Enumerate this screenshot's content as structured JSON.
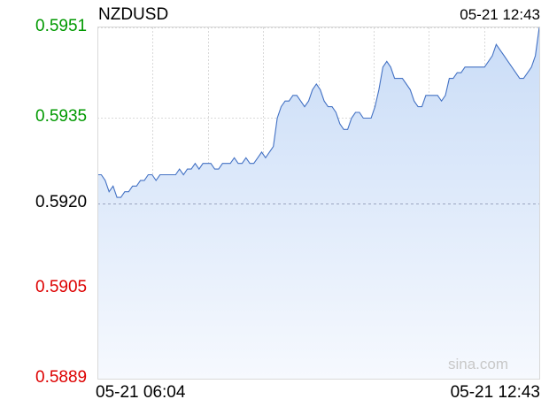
{
  "header": {
    "symbol": "NZDUSD",
    "timestamp": "05-21 12:43"
  },
  "watermark": "sina.com",
  "colors": {
    "up": "#009900",
    "down": "#dd0000",
    "neutral": "#000000",
    "line": "#4472c4",
    "fill_top": "#c9dcf7",
    "fill_bottom": "#f6f9fe",
    "grid": "#d9d9d9",
    "baseline": "#9aa5c0"
  },
  "chart_data": {
    "type": "area",
    "title": "NZDUSD",
    "xlabel": "",
    "ylabel": "",
    "x_range": [
      "05-21 06:04",
      "05-21 12:43"
    ],
    "x_tick_labels": [
      "05-21 06:04",
      "05-21 12:43"
    ],
    "ylim": [
      0.5889,
      0.5951
    ],
    "y_ticks": [
      {
        "label": "0.5951",
        "value": 0.5951,
        "tone": "up"
      },
      {
        "label": "0.5935",
        "value": 0.5935,
        "tone": "up"
      },
      {
        "label": "0.5920",
        "value": 0.592,
        "tone": "neutral"
      },
      {
        "label": "0.5905",
        "value": 0.5905,
        "tone": "down"
      },
      {
        "label": "0.5889",
        "value": 0.5889,
        "tone": "down"
      }
    ],
    "reference_value": 0.592,
    "grid": true,
    "series": [
      {
        "values": [
          0.5925,
          0.5925,
          0.5924,
          0.5922,
          0.5923,
          0.5921,
          0.5921,
          0.5922,
          0.5922,
          0.5923,
          0.5923,
          0.5924,
          0.5924,
          0.5925,
          0.5925,
          0.5924,
          0.5925,
          0.5925,
          0.5925,
          0.5925,
          0.5925,
          0.5926,
          0.5925,
          0.5926,
          0.5926,
          0.5927,
          0.5926,
          0.5927,
          0.5927,
          0.5927,
          0.5926,
          0.5926,
          0.5927,
          0.5927,
          0.5927,
          0.5928,
          0.5927,
          0.5927,
          0.5928,
          0.5927,
          0.5927,
          0.5928,
          0.5929,
          0.5928,
          0.5929,
          0.593,
          0.5935,
          0.5937,
          0.5938,
          0.5938,
          0.5939,
          0.5939,
          0.5938,
          0.5937,
          0.5938,
          0.594,
          0.5941,
          0.594,
          0.5938,
          0.5937,
          0.5937,
          0.5936,
          0.5934,
          0.5933,
          0.5933,
          0.5935,
          0.5936,
          0.5936,
          0.5935,
          0.5935,
          0.5935,
          0.5937,
          0.594,
          0.5944,
          0.5945,
          0.5944,
          0.5942,
          0.5942,
          0.5942,
          0.5941,
          0.594,
          0.5938,
          0.5937,
          0.5937,
          0.5939,
          0.5939,
          0.5939,
          0.5939,
          0.5938,
          0.5939,
          0.5942,
          0.5942,
          0.5943,
          0.5943,
          0.5944,
          0.5944,
          0.5944,
          0.5944,
          0.5944,
          0.5944,
          0.5945,
          0.5946,
          0.5948,
          0.5947,
          0.5946,
          0.5945,
          0.5944,
          0.5943,
          0.5942,
          0.5942,
          0.5943,
          0.5944,
          0.5946,
          0.5951
        ]
      }
    ]
  }
}
